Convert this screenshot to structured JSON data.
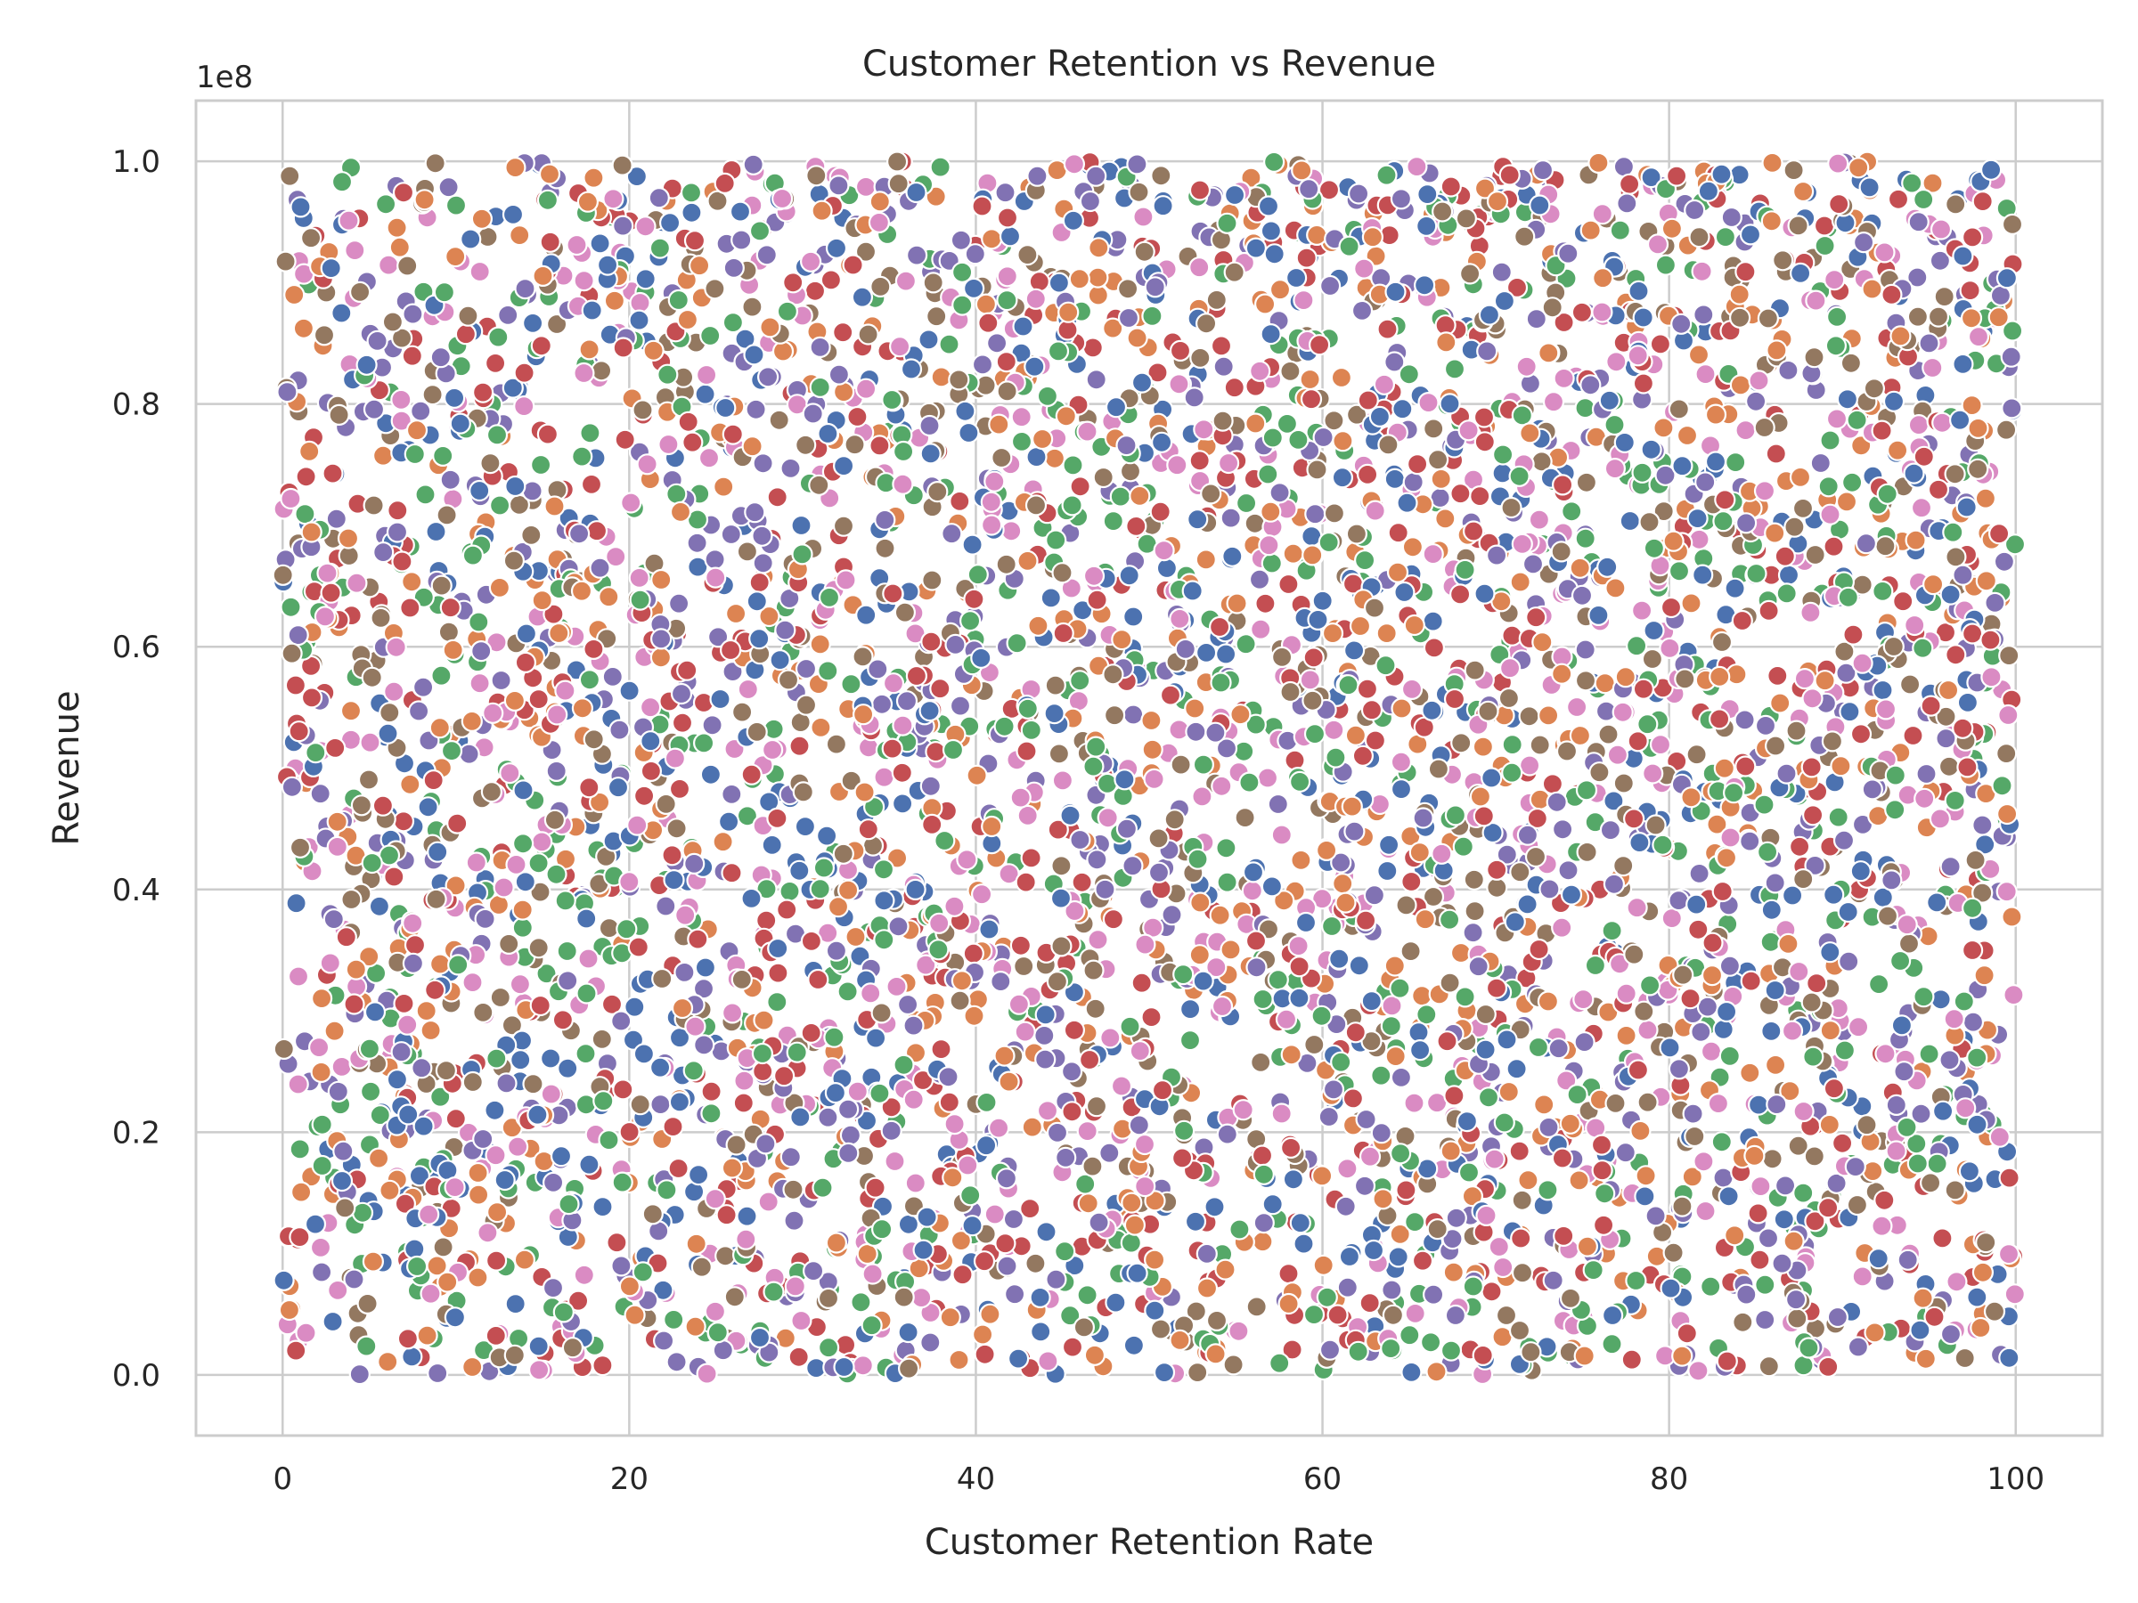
{
  "chart_data": {
    "type": "scatter",
    "title": "Customer Retention vs Revenue",
    "xlabel": "Customer Retention Rate",
    "ylabel": "Revenue",
    "y_offset_label": "1e8",
    "xlim": [
      -5,
      105
    ],
    "ylim": [
      -0.05,
      1.05
    ],
    "x_ticks": [
      0,
      20,
      40,
      60,
      80,
      100
    ],
    "x_tick_labels": [
      "0",
      "20",
      "40",
      "60",
      "80",
      "100"
    ],
    "y_ticks": [
      0.0,
      0.2,
      0.4,
      0.6,
      0.8,
      1.0
    ],
    "y_tick_labels": [
      "0.0",
      "0.2",
      "0.4",
      "0.6",
      "0.8",
      "1.0"
    ],
    "grid": true,
    "legend": "none",
    "x_range": [
      0,
      100
    ],
    "y_range": [
      0.0,
      1.0
    ],
    "point_count": 5000,
    "distribution": "uniform random",
    "palette": [
      "#4c72b0",
      "#dd8452",
      "#55a868",
      "#c44e52",
      "#8172b3",
      "#937860",
      "#da8bc3"
    ],
    "marker_edge_color": "#ffffff"
  }
}
